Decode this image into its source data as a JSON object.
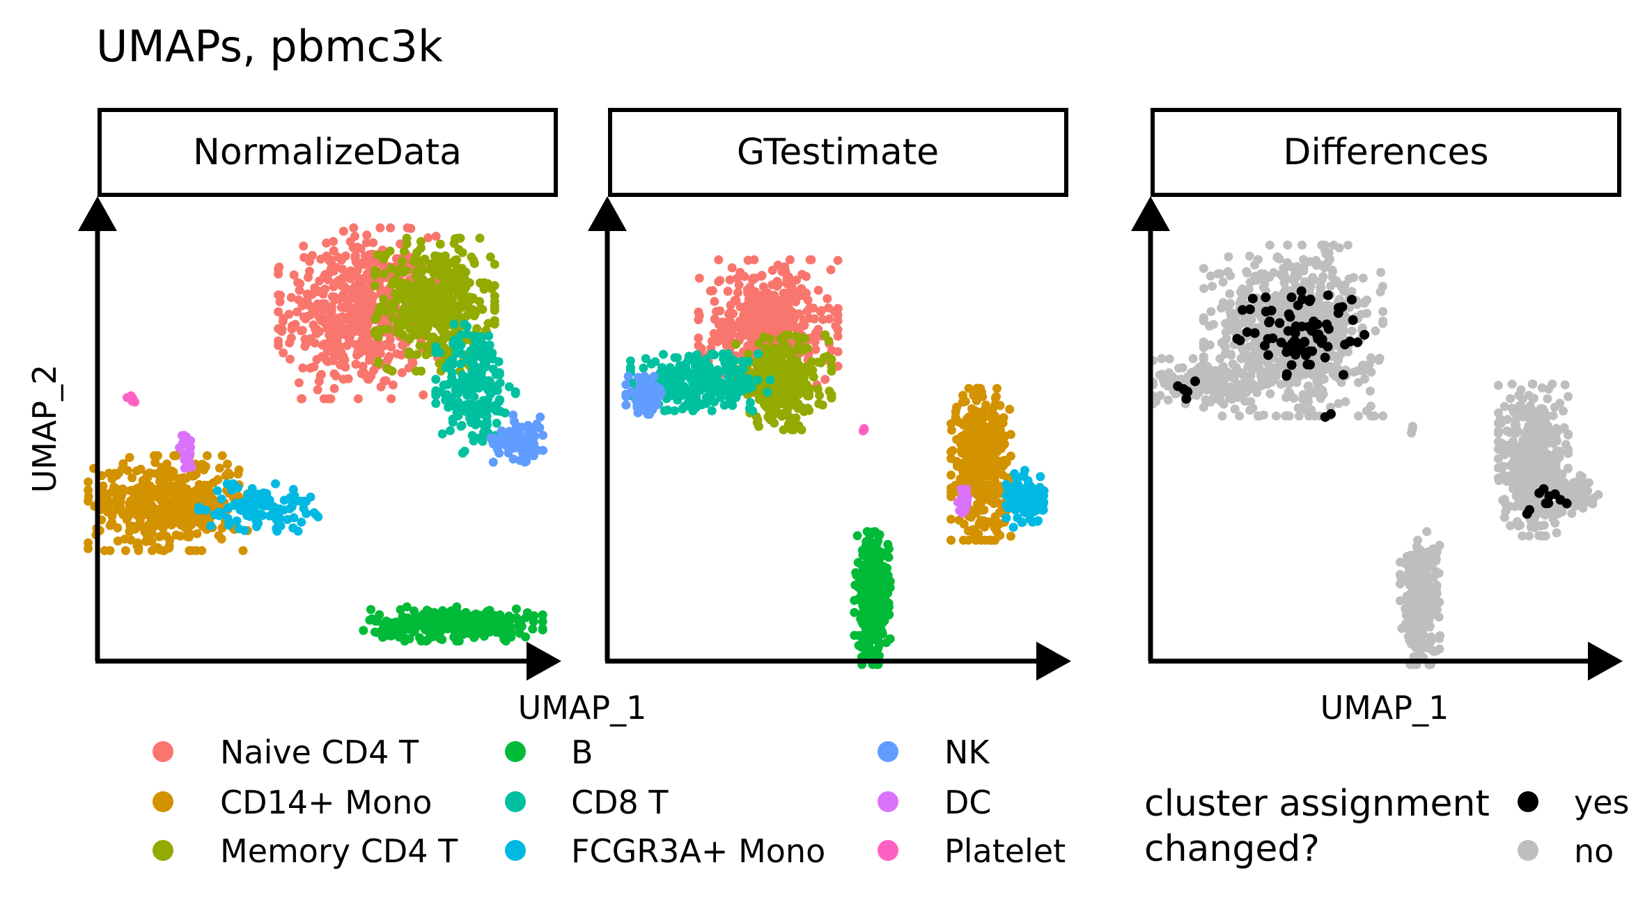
{
  "chart_data": {
    "type": "scatter",
    "title": "UMAPs, pbmc3k",
    "xlabel": "UMAP_1",
    "ylabel": "UMAP_2",
    "panels": [
      {
        "id": "normalize",
        "strip_label": "NormalizeData"
      },
      {
        "id": "gtestimate",
        "strip_label": "GTestimate"
      },
      {
        "id": "differences",
        "strip_label": "Differences"
      }
    ],
    "cell_types": [
      {
        "name": "Naive CD4 T",
        "color": "#F8766D"
      },
      {
        "name": "CD14+ Mono",
        "color": "#D39200"
      },
      {
        "name": "Memory CD4 T",
        "color": "#93AA00"
      },
      {
        "name": "B",
        "color": "#00BA38"
      },
      {
        "name": "CD8 T",
        "color": "#00C19F"
      },
      {
        "name": "FCGR3A+ Mono",
        "color": "#00B9E3"
      },
      {
        "name": "NK",
        "color": "#619CFF"
      },
      {
        "name": "DC",
        "color": "#DB72FB"
      },
      {
        "name": "Platelet",
        "color": "#FF61C3"
      }
    ],
    "changed_legend": {
      "title_lines": [
        "cluster assignment",
        "changed?"
      ],
      "entries": [
        {
          "label": "yes",
          "color": "#000000"
        },
        {
          "label": "no",
          "color": "#BEBEBE"
        }
      ]
    },
    "clusters": {
      "normalize": [
        {
          "type": 0,
          "cx": 0.56,
          "cy": 0.79,
          "sx": 0.08,
          "sy": 0.09,
          "n": 520
        },
        {
          "type": 2,
          "cx": 0.73,
          "cy": 0.81,
          "sx": 0.06,
          "sy": 0.07,
          "n": 380
        },
        {
          "type": 4,
          "cx": 0.82,
          "cy": 0.62,
          "sx": 0.04,
          "sy": 0.07,
          "n": 220
        },
        {
          "type": 6,
          "cx": 0.92,
          "cy": 0.5,
          "sx": 0.03,
          "sy": 0.025,
          "n": 80
        },
        {
          "type": 1,
          "cx": 0.14,
          "cy": 0.35,
          "sx": 0.08,
          "sy": 0.05,
          "n": 450
        },
        {
          "type": 5,
          "cx": 0.34,
          "cy": 0.34,
          "sx": 0.06,
          "sy": 0.025,
          "n": 110
        },
        {
          "type": 7,
          "cx": 0.18,
          "cy": 0.47,
          "sx": 0.007,
          "sy": 0.025,
          "n": 20
        },
        {
          "type": 8,
          "cx": 0.06,
          "cy": 0.59,
          "sx": 0.005,
          "sy": 0.005,
          "n": 5
        },
        {
          "type": 3,
          "cx": 0.77,
          "cy": 0.07,
          "sx": 0.09,
          "sy": 0.018,
          "n": 300
        }
      ],
      "gtestimate": [
        {
          "type": 0,
          "cx": 0.34,
          "cy": 0.76,
          "sx": 0.07,
          "sy": 0.07,
          "n": 420
        },
        {
          "type": 2,
          "cx": 0.37,
          "cy": 0.63,
          "sx": 0.05,
          "sy": 0.05,
          "n": 300
        },
        {
          "type": 4,
          "cx": 0.19,
          "cy": 0.63,
          "sx": 0.07,
          "sy": 0.03,
          "n": 280
        },
        {
          "type": 6,
          "cx": 0.07,
          "cy": 0.6,
          "sx": 0.02,
          "sy": 0.02,
          "n": 80
        },
        {
          "type": 1,
          "cx": 0.81,
          "cy": 0.44,
          "sx": 0.03,
          "sy": 0.08,
          "n": 400
        },
        {
          "type": 5,
          "cx": 0.91,
          "cy": 0.36,
          "sx": 0.02,
          "sy": 0.03,
          "n": 110
        },
        {
          "type": 7,
          "cx": 0.77,
          "cy": 0.36,
          "sx": 0.005,
          "sy": 0.015,
          "n": 20
        },
        {
          "type": 8,
          "cx": 0.55,
          "cy": 0.52,
          "sx": 0.004,
          "sy": 0.004,
          "n": 5
        },
        {
          "type": 3,
          "cx": 0.57,
          "cy": 0.13,
          "sx": 0.018,
          "sy": 0.07,
          "n": 300
        }
      ],
      "differences": [
        {
          "changed": false,
          "cx": 0.3,
          "cy": 0.75,
          "sx": 0.09,
          "sy": 0.09,
          "n": 700
        },
        {
          "changed": false,
          "cx": 0.1,
          "cy": 0.63,
          "sx": 0.05,
          "sy": 0.025,
          "n": 160
        },
        {
          "changed": false,
          "cx": 0.83,
          "cy": 0.45,
          "sx": 0.035,
          "sy": 0.08,
          "n": 450
        },
        {
          "changed": false,
          "cx": 0.93,
          "cy": 0.37,
          "sx": 0.02,
          "sy": 0.02,
          "n": 60
        },
        {
          "changed": false,
          "cx": 0.58,
          "cy": 0.13,
          "sx": 0.02,
          "sy": 0.07,
          "n": 300
        },
        {
          "changed": false,
          "cx": 0.56,
          "cy": 0.52,
          "sx": 0.004,
          "sy": 0.004,
          "n": 5
        },
        {
          "changed": true,
          "cx": 0.33,
          "cy": 0.74,
          "sx": 0.07,
          "sy": 0.05,
          "n": 75
        },
        {
          "changed": true,
          "cx": 0.07,
          "cy": 0.61,
          "sx": 0.03,
          "sy": 0.012,
          "n": 6
        },
        {
          "changed": true,
          "cx": 0.85,
          "cy": 0.36,
          "sx": 0.04,
          "sy": 0.02,
          "n": 10
        },
        {
          "changed": true,
          "cx": 0.38,
          "cy": 0.55,
          "sx": 0.005,
          "sy": 0.005,
          "n": 2
        }
      ]
    }
  }
}
